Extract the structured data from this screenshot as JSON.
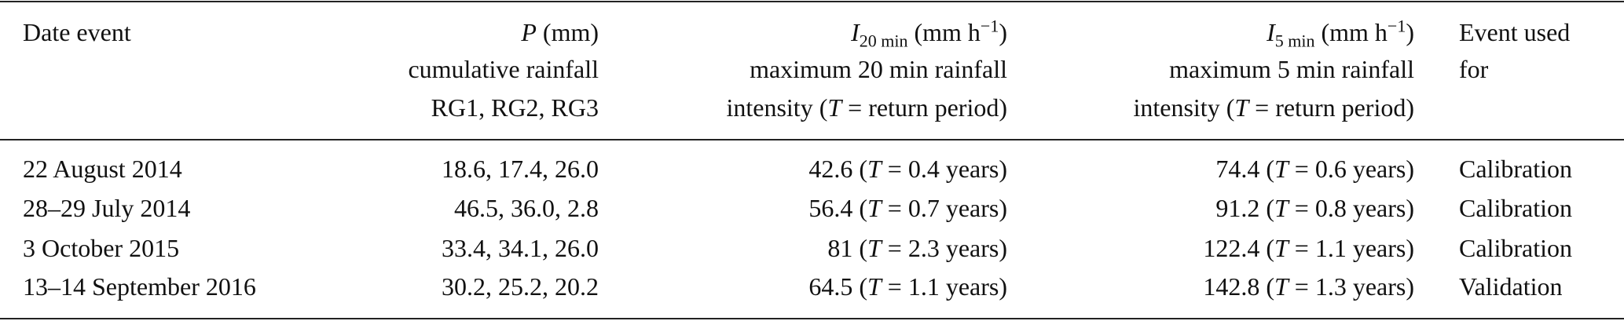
{
  "table": {
    "header": [
      [
        "Date event"
      ],
      [
        [
          "P",
          " (mm)"
        ],
        "cumulative rainfall",
        "RG1, RG2, RG3"
      ],
      [
        [
          "I",
          "20 min",
          " (mm h",
          "−1",
          ")"
        ],
        "maximum 20 min rainfall",
        [
          "intensity (",
          "T",
          " = return period)"
        ]
      ],
      [
        [
          "I",
          "5 min",
          " (mm h",
          "−1",
          ")"
        ],
        "maximum 5 min rainfall",
        [
          "intensity (",
          "T",
          " = return period)"
        ]
      ],
      [
        "Event used",
        "for"
      ]
    ],
    "rows": [
      [
        "22 August 2014",
        "18.6, 17.4, 26.0",
        [
          "42.6 (",
          "T",
          " = 0.4 years)"
        ],
        [
          "74.4 (",
          "T",
          " = 0.6 years)"
        ],
        "Calibration"
      ],
      [
        "28–29 July 2014",
        "46.5, 36.0, 2.8",
        [
          "56.4 (",
          "T",
          " = 0.7 years)"
        ],
        [
          "91.2 (",
          "T",
          " = 0.8 years)"
        ],
        "Calibration"
      ],
      [
        "3 October 2015",
        "33.4, 34.1, 26.0",
        [
          "81 (",
          "T",
          " = 2.3 years)"
        ],
        [
          "122.4 (",
          "T",
          " = 1.1 years)"
        ],
        "Calibration"
      ],
      [
        "13–14 September 2016",
        "30.2, 25.2, 20.2",
        [
          "64.5 (",
          "T",
          " = 1.1 years)"
        ],
        [
          "142.8 (",
          "T",
          " = 1.3 years)"
        ],
        "Validation"
      ]
    ]
  }
}
